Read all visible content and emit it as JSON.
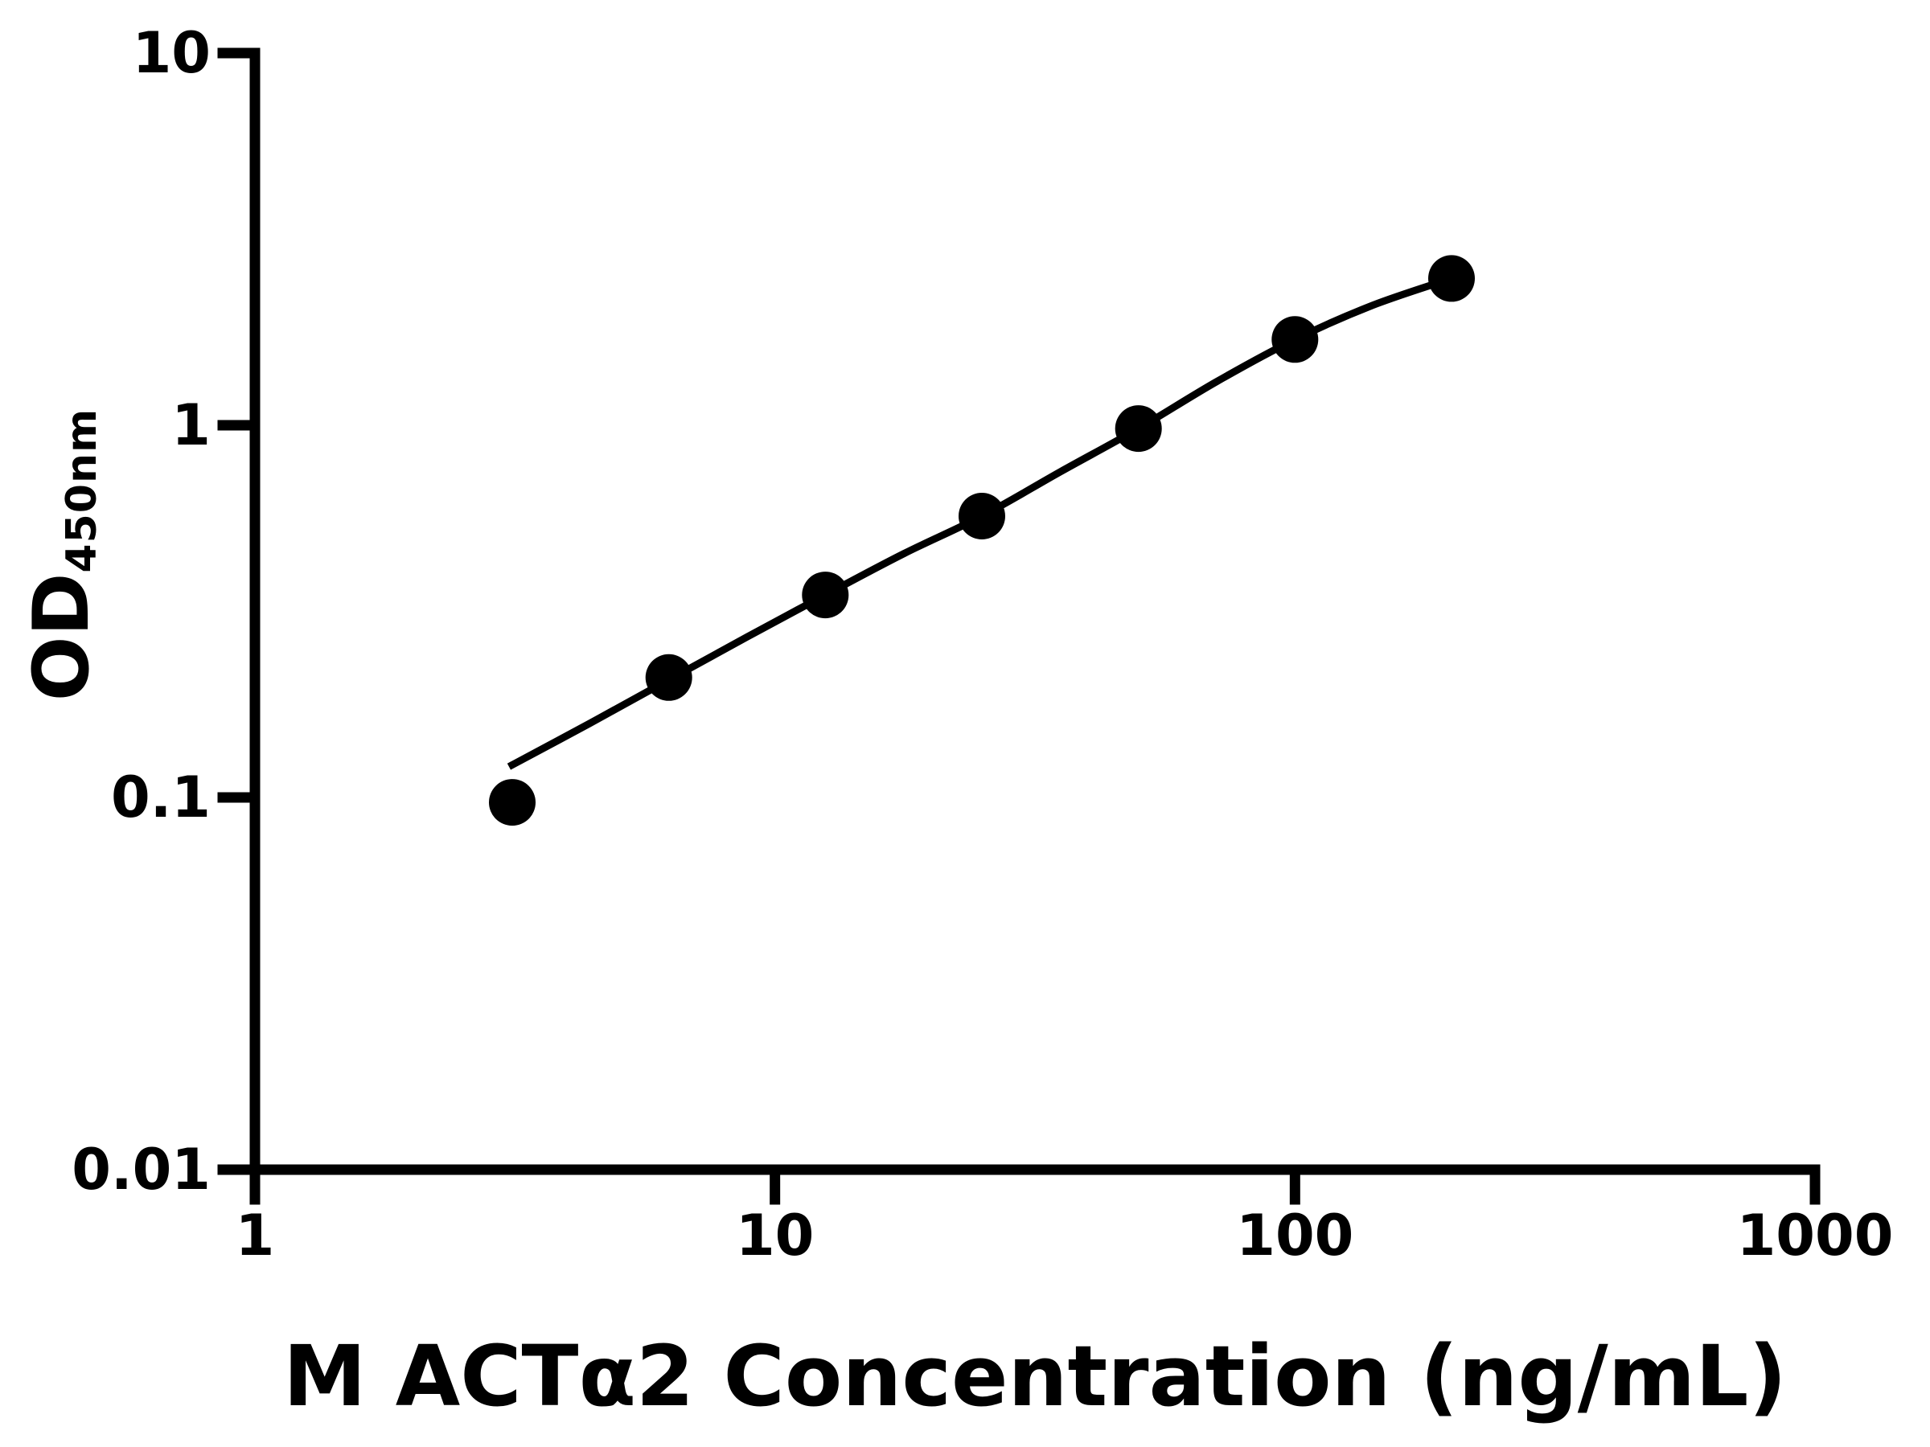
{
  "figure": {
    "background_color": "#ffffff",
    "ink_color": "#000000"
  },
  "chart_data": {
    "type": "scatter",
    "title": "",
    "xlabel": "M ACTα2 Concentration (ng/mL)",
    "ylabel": "OD",
    "ylabel_subscript": "450nm",
    "x_scale": "log",
    "y_scale": "log",
    "xlim": [
      1,
      1000
    ],
    "ylim": [
      0.01,
      10
    ],
    "grid": false,
    "legend": null,
    "x_ticks": [
      {
        "value": 1,
        "label": "1"
      },
      {
        "value": 10,
        "label": "10"
      },
      {
        "value": 100,
        "label": "100"
      },
      {
        "value": 1000,
        "label": "1000"
      }
    ],
    "y_ticks": [
      {
        "value": 10,
        "label": "10"
      },
      {
        "value": 1,
        "label": "1"
      },
      {
        "value": 0.1,
        "label": "0.1"
      },
      {
        "value": 0.01,
        "label": "0.01"
      }
    ],
    "series": [
      {
        "name": "standard-curve-points",
        "marker": "filled-circle",
        "color": "#000000",
        "points": [
          {
            "x": 3.125,
            "y": 0.097
          },
          {
            "x": 6.25,
            "y": 0.21
          },
          {
            "x": 12.5,
            "y": 0.35
          },
          {
            "x": 25,
            "y": 0.57
          },
          {
            "x": 50,
            "y": 0.98
          },
          {
            "x": 100,
            "y": 1.7
          },
          {
            "x": 200,
            "y": 2.48
          }
        ]
      }
    ],
    "fit_curve": [
      {
        "x": 3.08,
        "y": 0.121
      },
      {
        "x": 4.4,
        "y": 0.158
      },
      {
        "x": 6.25,
        "y": 0.207
      },
      {
        "x": 8.84,
        "y": 0.27
      },
      {
        "x": 12.5,
        "y": 0.35
      },
      {
        "x": 17.7,
        "y": 0.452
      },
      {
        "x": 25,
        "y": 0.57
      },
      {
        "x": 35.4,
        "y": 0.75
      },
      {
        "x": 50,
        "y": 0.98
      },
      {
        "x": 70.7,
        "y": 1.31
      },
      {
        "x": 100,
        "y": 1.7
      },
      {
        "x": 141,
        "y": 2.1
      },
      {
        "x": 200,
        "y": 2.48
      }
    ]
  }
}
